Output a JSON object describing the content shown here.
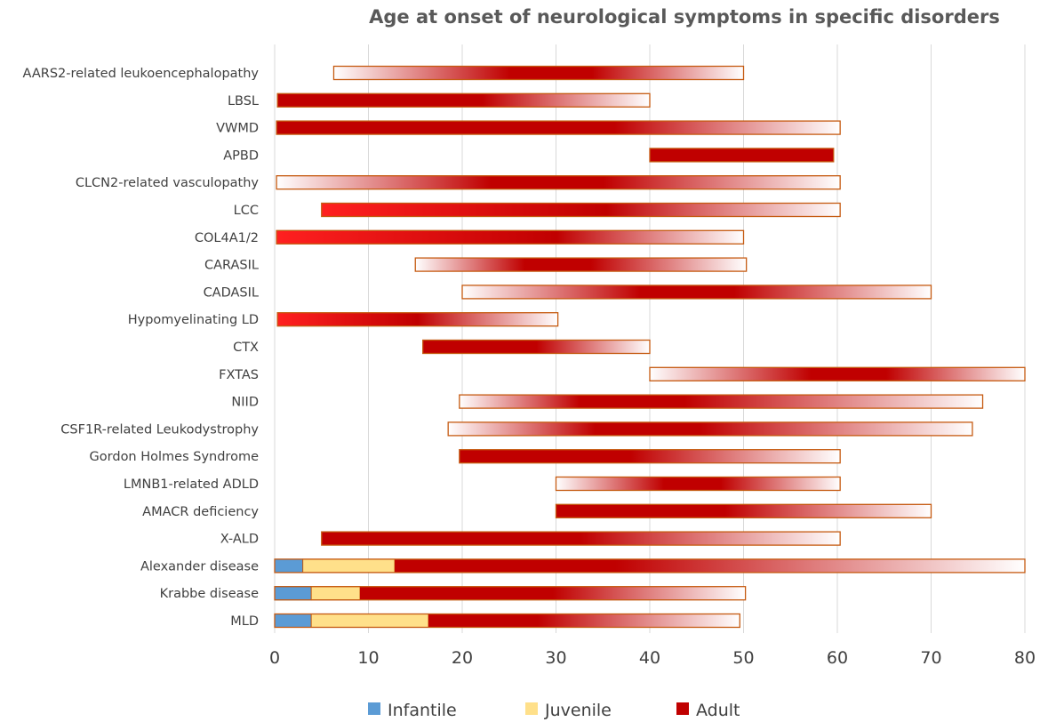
{
  "chart_data": {
    "type": "bar",
    "orientation": "horizontal",
    "title": "Age at onset of neurological symptoms in specific disorders",
    "xlabel": "",
    "ylabel": "",
    "xlim": [
      0,
      80
    ],
    "xticks": [
      0,
      10,
      20,
      30,
      40,
      50,
      60,
      70,
      80
    ],
    "grid": true,
    "legend_position": "bottom",
    "legend": [
      {
        "name": "Infantile",
        "color": "#5b9bd5"
      },
      {
        "name": "Juvenile",
        "color": "#ffe08a"
      },
      {
        "name": "Adult",
        "color": "#c00000"
      }
    ],
    "colors": {
      "infantile": "#5b9bd5",
      "juvenile": "#ffe08a",
      "adult": "#c00000",
      "adult_bright": "#ff2020",
      "outline": "#c55a11",
      "grid": "#d9d9d9",
      "text": "#404040",
      "title": "#595959"
    },
    "disorders": [
      {
        "name": "AARS2-related leukoencephalopathy",
        "start": 6.3,
        "end": 50,
        "segments": [
          {
            "phase": "adult",
            "from": 6.3,
            "to": 50,
            "fade": "both",
            "peak": 0.55
          }
        ]
      },
      {
        "name": "LBSL",
        "start": 0.3,
        "end": 40,
        "segments": [
          {
            "phase": "adult",
            "from": 0.3,
            "to": 40,
            "fade": "end",
            "solid_until": 0.55
          }
        ]
      },
      {
        "name": "VWMD",
        "start": 0.2,
        "end": 60.3,
        "segments": [
          {
            "phase": "adult",
            "from": 0.2,
            "to": 60.3,
            "fade": "end",
            "solid_until": 0.6
          }
        ]
      },
      {
        "name": "APBD",
        "start": 40,
        "end": 59.6,
        "segments": [
          {
            "phase": "adult",
            "from": 40,
            "to": 59.6,
            "fade": "none"
          }
        ]
      },
      {
        "name": "CLCN2-related vasculopathy",
        "start": 0.2,
        "end": 60.3,
        "segments": [
          {
            "phase": "adult",
            "from": 0.2,
            "to": 60.3,
            "fade": "both",
            "peak": 0.5
          }
        ]
      },
      {
        "name": "LCC",
        "start": 5,
        "end": 60.3,
        "segments": [
          {
            "phase": "adult",
            "from": 5,
            "to": 60.3,
            "fade": "end",
            "solid_until": 0.55,
            "bright_start": true
          }
        ]
      },
      {
        "name": "COL4A1/2",
        "start": 0.2,
        "end": 50,
        "segments": [
          {
            "phase": "adult",
            "from": 0.2,
            "to": 50,
            "fade": "end",
            "solid_until": 0.6,
            "bright_start": true
          }
        ]
      },
      {
        "name": "CARASIL",
        "start": 15,
        "end": 50.3,
        "segments": [
          {
            "phase": "adult",
            "from": 15,
            "to": 50.3,
            "fade": "both",
            "peak": 0.45
          }
        ]
      },
      {
        "name": "CADASIL",
        "start": 20,
        "end": 70,
        "segments": [
          {
            "phase": "adult",
            "from": 20,
            "to": 70,
            "fade": "both",
            "peak": 0.5
          }
        ]
      },
      {
        "name": "Hypomyelinating LD",
        "start": 0.3,
        "end": 30.2,
        "segments": [
          {
            "phase": "adult",
            "from": 0.3,
            "to": 30.2,
            "fade": "end",
            "solid_until": 0.5,
            "bright_start": true
          }
        ]
      },
      {
        "name": "CTX",
        "start": 15.8,
        "end": 40,
        "segments": [
          {
            "phase": "adult",
            "from": 15.8,
            "to": 40,
            "fade": "end",
            "solid_until": 0.5
          }
        ]
      },
      {
        "name": "FXTAS",
        "start": 40,
        "end": 80,
        "segments": [
          {
            "phase": "adult",
            "from": 40,
            "to": 80,
            "fade": "both",
            "peak": 0.55
          }
        ]
      },
      {
        "name": "NIID",
        "start": 19.7,
        "end": 75.5,
        "segments": [
          {
            "phase": "adult",
            "from": 19.7,
            "to": 75.5,
            "fade": "both",
            "peak": 0.35
          }
        ]
      },
      {
        "name": "CSF1R-related Leukodystrophy",
        "start": 18.5,
        "end": 74.4,
        "segments": [
          {
            "phase": "adult",
            "from": 18.5,
            "to": 74.4,
            "fade": "both",
            "peak": 0.4
          }
        ]
      },
      {
        "name": "Gordon Holmes Syndrome",
        "start": 19.7,
        "end": 60.3,
        "segments": [
          {
            "phase": "adult",
            "from": 19.7,
            "to": 60.3,
            "fade": "end",
            "solid_until": 0.45
          }
        ]
      },
      {
        "name": "LMNB1-related ADLD",
        "start": 30,
        "end": 60.3,
        "segments": [
          {
            "phase": "adult",
            "from": 30,
            "to": 60.3,
            "fade": "both",
            "peak": 0.5
          }
        ]
      },
      {
        "name": "AMACR deficiency",
        "start": 30,
        "end": 70,
        "segments": [
          {
            "phase": "adult",
            "from": 30,
            "to": 70,
            "fade": "end",
            "solid_until": 0.45
          }
        ]
      },
      {
        "name": "X-ALD",
        "start": 5,
        "end": 60.3,
        "segments": [
          {
            "phase": "adult",
            "from": 5,
            "to": 60.3,
            "fade": "end",
            "solid_until": 0.5
          }
        ]
      },
      {
        "name": "Alexander disease",
        "start": 0,
        "end": 80,
        "segments": [
          {
            "phase": "infantile",
            "from": 0,
            "to": 3
          },
          {
            "phase": "juvenile",
            "from": 3,
            "to": 12.8
          },
          {
            "phase": "adult",
            "from": 12.8,
            "to": 80,
            "fade": "end",
            "solid_until": 0.35
          }
        ]
      },
      {
        "name": "Krabbe disease",
        "start": 0,
        "end": 50.2,
        "segments": [
          {
            "phase": "infantile",
            "from": 0,
            "to": 3.9
          },
          {
            "phase": "juvenile",
            "from": 3.9,
            "to": 9.1
          },
          {
            "phase": "adult",
            "from": 9.1,
            "to": 50.2,
            "fade": "end",
            "solid_until": 0.5
          }
        ]
      },
      {
        "name": "MLD",
        "start": 0,
        "end": 49.6,
        "segments": [
          {
            "phase": "infantile",
            "from": 0,
            "to": 3.9
          },
          {
            "phase": "juvenile",
            "from": 3.9,
            "to": 16.4
          },
          {
            "phase": "adult",
            "from": 16.4,
            "to": 49.6,
            "fade": "end",
            "solid_until": 0.35
          }
        ]
      }
    ]
  }
}
